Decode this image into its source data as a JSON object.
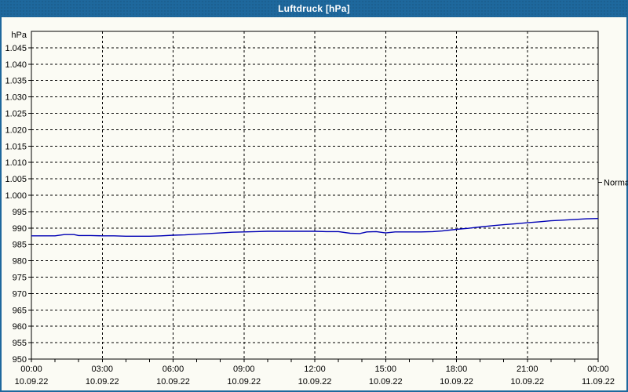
{
  "window": {
    "title": "Luftdruck [hPa]"
  },
  "colors": {
    "titlebar": "#1e689d",
    "frame_border": "#1e689d",
    "background": "#fbfbf4",
    "plot_border": "#000000",
    "grid": "#000000",
    "series_line": "#0000b4",
    "text": "#000000",
    "title_text": "#ffffff"
  },
  "chart_data": {
    "type": "line",
    "title": "Luftdruck [hPa]",
    "unit_label": "hPa",
    "grid": "dashed",
    "legend_position": "none",
    "ylim": [
      950,
      1050
    ],
    "xlim_hours": [
      0,
      24
    ],
    "x_minor_tick_step_hours": 1,
    "yticks": [
      950,
      955,
      960,
      965,
      970,
      975,
      980,
      985,
      990,
      995,
      1000,
      1005,
      1010,
      1015,
      1020,
      1025,
      1030,
      1035,
      1040,
      1045
    ],
    "ytick_labels": [
      "950",
      "955",
      "960",
      "965",
      "970",
      "975",
      "980",
      "985",
      "990",
      "995",
      "1.000",
      "1.005",
      "1.010",
      "1.015",
      "1.020",
      "1.025",
      "1.030",
      "1.035",
      "1.040",
      "1.045"
    ],
    "xticks_hours": [
      0,
      3,
      6,
      9,
      12,
      15,
      18,
      21,
      24
    ],
    "xtick_time_labels": [
      "00:00",
      "03:00",
      "06:00",
      "09:00",
      "12:00",
      "15:00",
      "18:00",
      "21:00",
      "00:00"
    ],
    "xtick_date_labels": [
      "10.09.22",
      "10.09.22",
      "10.09.22",
      "10.09.22",
      "10.09.22",
      "10.09.22",
      "10.09.22",
      "10.09.22",
      "11.09.22"
    ],
    "normal_marker": {
      "label": "Normal",
      "value": 1004
    },
    "series": [
      {
        "name": "Luftdruck",
        "points": [
          {
            "t": 0.0,
            "v": 987.6
          },
          {
            "t": 0.5,
            "v": 987.6
          },
          {
            "t": 1.0,
            "v": 987.6
          },
          {
            "t": 1.4,
            "v": 988.0
          },
          {
            "t": 1.8,
            "v": 988.0
          },
          {
            "t": 2.0,
            "v": 987.7
          },
          {
            "t": 2.5,
            "v": 987.7
          },
          {
            "t": 3.0,
            "v": 987.6
          },
          {
            "t": 3.5,
            "v": 987.6
          },
          {
            "t": 4.0,
            "v": 987.5
          },
          {
            "t": 4.5,
            "v": 987.5
          },
          {
            "t": 5.0,
            "v": 987.5
          },
          {
            "t": 5.5,
            "v": 987.6
          },
          {
            "t": 6.0,
            "v": 987.8
          },
          {
            "t": 6.5,
            "v": 987.9
          },
          {
            "t": 7.0,
            "v": 988.1
          },
          {
            "t": 7.5,
            "v": 988.3
          },
          {
            "t": 8.0,
            "v": 988.5
          },
          {
            "t": 8.5,
            "v": 988.7
          },
          {
            "t": 9.0,
            "v": 988.8
          },
          {
            "t": 9.5,
            "v": 988.9
          },
          {
            "t": 10.0,
            "v": 989.0
          },
          {
            "t": 11.0,
            "v": 989.0
          },
          {
            "t": 12.0,
            "v": 989.0
          },
          {
            "t": 12.5,
            "v": 988.9
          },
          {
            "t": 13.0,
            "v": 988.9
          },
          {
            "t": 13.5,
            "v": 988.4
          },
          {
            "t": 13.9,
            "v": 988.3
          },
          {
            "t": 14.2,
            "v": 988.8
          },
          {
            "t": 14.6,
            "v": 988.9
          },
          {
            "t": 15.0,
            "v": 988.5
          },
          {
            "t": 15.4,
            "v": 988.8
          },
          {
            "t": 16.0,
            "v": 988.8
          },
          {
            "t": 16.5,
            "v": 988.8
          },
          {
            "t": 17.0,
            "v": 988.9
          },
          {
            "t": 17.4,
            "v": 989.1
          },
          {
            "t": 18.0,
            "v": 989.6
          },
          {
            "t": 18.5,
            "v": 989.9
          },
          {
            "t": 19.0,
            "v": 990.3
          },
          {
            "t": 19.5,
            "v": 990.7
          },
          {
            "t": 20.0,
            "v": 991.0
          },
          {
            "t": 20.5,
            "v": 991.3
          },
          {
            "t": 21.0,
            "v": 991.6
          },
          {
            "t": 21.5,
            "v": 991.9
          },
          {
            "t": 22.0,
            "v": 992.2
          },
          {
            "t": 22.5,
            "v": 992.4
          },
          {
            "t": 23.0,
            "v": 992.6
          },
          {
            "t": 23.5,
            "v": 992.8
          },
          {
            "t": 24.0,
            "v": 992.9
          }
        ]
      }
    ]
  }
}
